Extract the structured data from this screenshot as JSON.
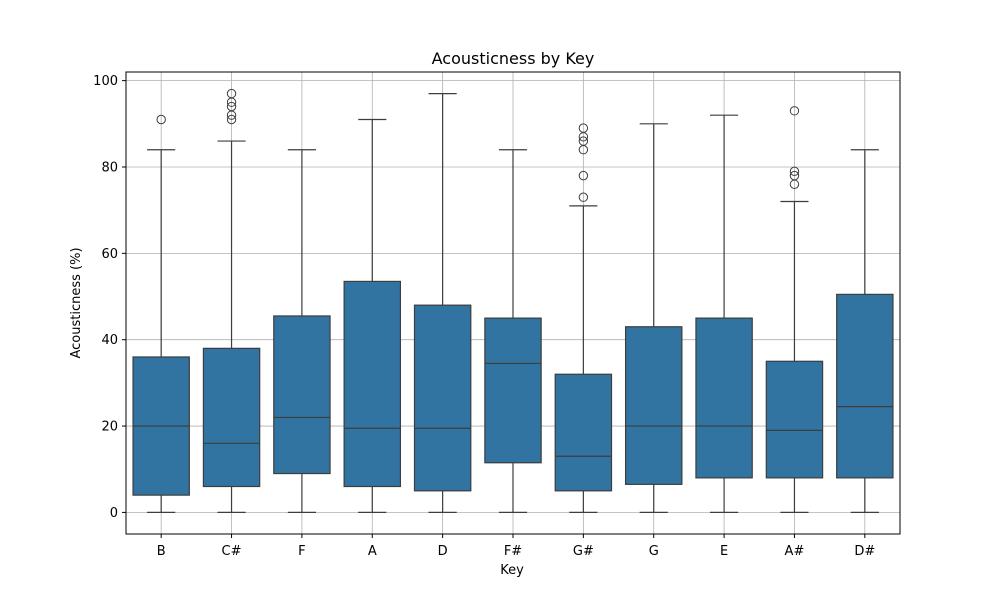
{
  "chart_data": {
    "type": "box",
    "title": "Acousticness by Key",
    "xlabel": "Key",
    "ylabel": "Acousticness (%)",
    "ylim": [
      -5,
      102
    ],
    "yticks": [
      0,
      20,
      40,
      60,
      80,
      100
    ],
    "grid": true,
    "box_color": "#3274a1",
    "line_color": "#3d3d3d",
    "categories": [
      "B",
      "C#",
      "F",
      "A",
      "D",
      "F#",
      "G#",
      "G",
      "E",
      "A#",
      "D#"
    ],
    "boxes": [
      {
        "key": "B",
        "min": 0,
        "q1": 4,
        "median": 20,
        "q3": 36,
        "max": 84,
        "outliers": [
          91
        ]
      },
      {
        "key": "C#",
        "min": 0,
        "q1": 6,
        "median": 16,
        "q3": 38,
        "max": 86,
        "outliers": [
          91,
          92,
          94,
          95,
          97
        ]
      },
      {
        "key": "F",
        "min": 0,
        "q1": 9,
        "median": 22,
        "q3": 45.5,
        "max": 84,
        "outliers": []
      },
      {
        "key": "A",
        "min": 0,
        "q1": 6,
        "median": 19.5,
        "q3": 53.5,
        "max": 91,
        "outliers": []
      },
      {
        "key": "D",
        "min": 0,
        "q1": 5,
        "median": 19.5,
        "q3": 48,
        "max": 97,
        "outliers": []
      },
      {
        "key": "F#",
        "min": 0,
        "q1": 11.5,
        "median": 34.5,
        "q3": 45,
        "max": 84,
        "outliers": []
      },
      {
        "key": "G#",
        "min": 0,
        "q1": 5,
        "median": 13,
        "q3": 32,
        "max": 71,
        "outliers": [
          73,
          78,
          84,
          86,
          87,
          89
        ]
      },
      {
        "key": "G",
        "min": 0,
        "q1": 6.5,
        "median": 20,
        "q3": 43,
        "max": 90,
        "outliers": []
      },
      {
        "key": "E",
        "min": 0,
        "q1": 8,
        "median": 20,
        "q3": 45,
        "max": 92,
        "outliers": []
      },
      {
        "key": "A#",
        "min": 0,
        "q1": 8,
        "median": 19,
        "q3": 35,
        "max": 72,
        "outliers": [
          76,
          78,
          79,
          93
        ]
      },
      {
        "key": "D#",
        "min": 0,
        "q1": 8,
        "median": 24.5,
        "q3": 50.5,
        "max": 84,
        "outliers": []
      }
    ]
  }
}
